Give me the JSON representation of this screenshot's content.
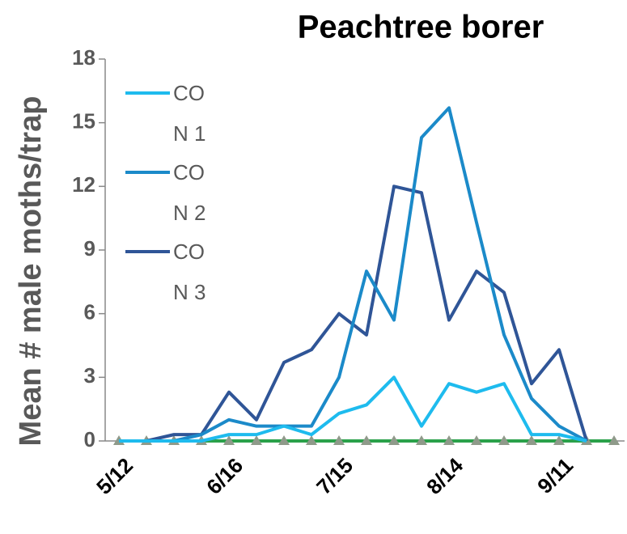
{
  "chart_data": {
    "type": "line",
    "title": "Peachtree borer",
    "y_label": "Mean # male moths/trap",
    "categories": [
      "5/12",
      null,
      null,
      null,
      "6/16",
      null,
      null,
      null,
      "7/15",
      null,
      null,
      null,
      "8/14",
      null,
      null,
      null,
      "9/11",
      null,
      null
    ],
    "series": [
      {
        "name": "CON 1",
        "color": "#1ebbee",
        "values": [
          0,
          0,
          0,
          0,
          0.3,
          0.3,
          0.7,
          0.3,
          1.3,
          1.7,
          3,
          0.7,
          2.7,
          2.3,
          2.7,
          0.3,
          0.3,
          0,
          null
        ]
      },
      {
        "name": "CON 2",
        "color": "#1b8ac9",
        "values": [
          0,
          0,
          0,
          0.3,
          1,
          0.7,
          0.7,
          0.7,
          3,
          8,
          5.7,
          14.3,
          15.7,
          10.3,
          5,
          2,
          0.7,
          0,
          null
        ]
      },
      {
        "name": "CON 3",
        "color": "#2f5597",
        "values": [
          0,
          0,
          0.3,
          0.3,
          2.3,
          1,
          3.7,
          4.3,
          6,
          5,
          12,
          11.7,
          5.7,
          8,
          7,
          2.7,
          4.3,
          0,
          null
        ]
      },
      {
        "color": "#2aa14a",
        "marker_color": "#8f9a8a",
        "marker": "triangle",
        "values": [
          0,
          0,
          0,
          0,
          0,
          0,
          0,
          0,
          0,
          0,
          0,
          0,
          0,
          0,
          0,
          0,
          0,
          0,
          0
        ]
      }
    ],
    "ylim": [
      0,
      18
    ],
    "yticks": [
      0,
      3,
      6,
      9,
      12,
      15,
      18
    ],
    "legend": "upper left"
  }
}
